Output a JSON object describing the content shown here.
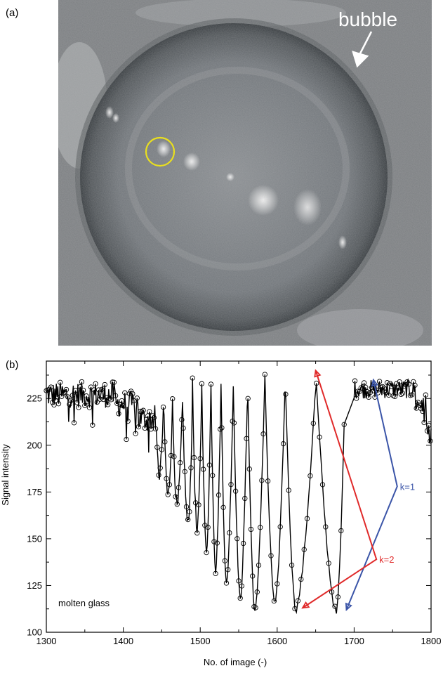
{
  "panel_a": {
    "label": "(a)",
    "bubble_label": "bubble",
    "colors": {
      "circle": "#f2e600",
      "photo_bg": "#7c7f82",
      "bubble_rim": "#3e4347"
    }
  },
  "panel_b": {
    "label": "(b)"
  },
  "chart_data": {
    "type": "line",
    "title": "",
    "xlabel": "No. of image (-)",
    "ylabel": "Signal intensity",
    "xlim": [
      1300,
      1800
    ],
    "ylim": [
      100,
      245
    ],
    "x_ticks": [
      1300,
      1400,
      1500,
      1600,
      1700,
      1800
    ],
    "y_ticks": [
      100,
      125,
      150,
      175,
      200,
      225
    ],
    "grid": false,
    "marker": "open-circle",
    "line_color": "#000000",
    "annotation_text": "molten glass",
    "envelope_minima": [
      {
        "x": 1447,
        "y": 184
      },
      {
        "x": 1458,
        "y": 172
      },
      {
        "x": 1470,
        "y": 166
      },
      {
        "x": 1484,
        "y": 157
      },
      {
        "x": 1496,
        "y": 152
      },
      {
        "x": 1508,
        "y": 142
      },
      {
        "x": 1520,
        "y": 133
      },
      {
        "x": 1534,
        "y": 125
      },
      {
        "x": 1552,
        "y": 117
      },
      {
        "x": 1571,
        "y": 110
      },
      {
        "x": 1597,
        "y": 113
      },
      {
        "x": 1624,
        "y": 112
      },
      {
        "x": 1677,
        "y": 110
      }
    ],
    "annotations": [
      {
        "label": "k=1",
        "color": "#3b55a8",
        "points": [
          {
            "x": 1725,
            "y": 235
          },
          {
            "x": 1690,
            "y": 112
          }
        ],
        "label_anchor": {
          "x": 1756,
          "y": 178
        }
      },
      {
        "label": "k=2",
        "color": "#e02a2a",
        "points": [
          {
            "x": 1650,
            "y": 240
          },
          {
            "x": 1633,
            "y": 113
          }
        ],
        "label_anchor": {
          "x": 1729,
          "y": 139
        }
      }
    ]
  }
}
